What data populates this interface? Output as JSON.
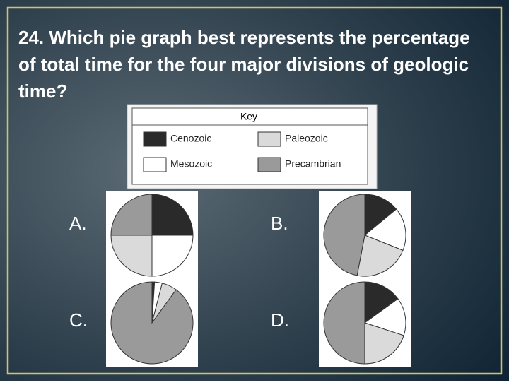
{
  "question": "24. Which pie graph best represents the percentage of total time for the four major divisions of geologic time?",
  "key": {
    "title": "Key",
    "items": [
      {
        "label": "Cenozoic",
        "color": "#2a2a2a"
      },
      {
        "label": "Paleozoic",
        "color": "#dadada"
      },
      {
        "label": "Mesozoic",
        "color": "#ffffff"
      },
      {
        "label": "Precambrian",
        "color": "#9a9a9a"
      }
    ]
  },
  "chart_data": [
    {
      "type": "pie",
      "title": "A.",
      "values": [
        25,
        25,
        25,
        25
      ],
      "colors": [
        "#2a2a2a",
        "#ffffff",
        "#dadada",
        "#9a9a9a"
      ]
    },
    {
      "type": "pie",
      "title": "B.",
      "values": [
        14,
        17,
        22,
        47
      ],
      "colors": [
        "#2a2a2a",
        "#ffffff",
        "#dadada",
        "#9a9a9a"
      ]
    },
    {
      "type": "pie",
      "title": "C.",
      "values": [
        1,
        3,
        6,
        90
      ],
      "colors": [
        "#2a2a2a",
        "#ffffff",
        "#dadada",
        "#9a9a9a"
      ]
    },
    {
      "type": "pie",
      "title": "D.",
      "values": [
        15,
        15,
        20,
        50
      ],
      "colors": [
        "#2a2a2a",
        "#ffffff",
        "#dadada",
        "#9a9a9a"
      ]
    }
  ]
}
